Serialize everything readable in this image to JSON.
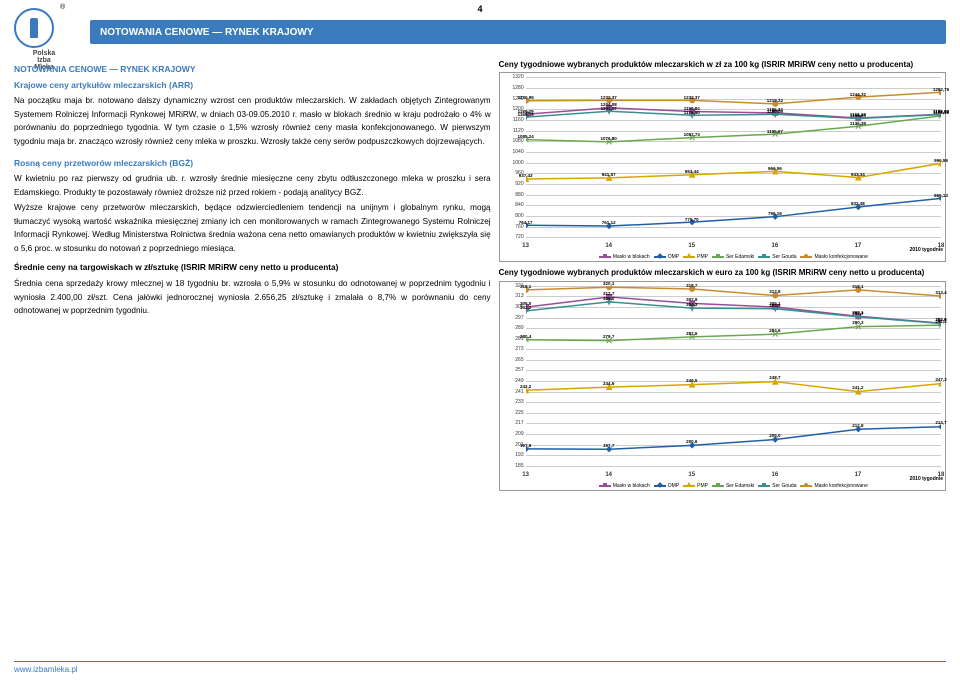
{
  "page_number": "4",
  "logo": {
    "line1": "Polska",
    "line2": "Izba",
    "line3": "Mleka",
    "trademark": "®"
  },
  "header_title": "NOTOWANIA CENOWE — RYNEK KRAJOWY",
  "footer": "www.izbamleka.pl",
  "left": {
    "title1": "NOTOWANIA CENOWE — RYNEK KRAJOWY",
    "title2": "Krajowe ceny artykułów mleczarskich (ARR)",
    "para1": "Na początku maja br. notowano dalszy dynamiczny wzrost cen produktów mleczarskich. W zakładach objętych Zintegrowanym Systemem Rolniczej Informacji Rynkowej MRiRW, w dniach 03-09.05.2010 r. masło w blokach średnio w kraju podrożało o 4% w porównaniu do poprzedniego tygodnia. W tym czasie o 1,5% wzrosły również ceny masła konfekcjonowanego. W pierwszym tygodniu maja br. znacząco wzrosły również ceny mleka w proszku. Wzrosły także ceny serów podpuszczkowych dojrzewających.",
    "title3": "Rosną ceny przetworów mleczarskich (BGŻ)",
    "para2": "W kwietniu po raz pierwszy od grudnia ub. r. wzrosły średnie miesięczne ceny zbytu odtłuszczonego mleka w proszku i sera Edamskiego. Produkty te pozostawały również droższe niż przed rokiem - podają analitycy BGŻ.",
    "para3": "Wyższe krajowe ceny przetworów mleczarskich, będące odzwierciedleniem tendencji na unijnym i globalnym rynku, mogą tłumaczyć wysoką wartość wskaźnika miesięcznej zmiany ich cen monitorowanych w ramach Zintegrowanego Systemu Rolniczej Informacji Rynkowej. Według Ministerstwa Rolnictwa średnia ważona cena netto omawianych produktów w kwietniu zwiększyła się o 5,6 proc. w stosunku do notowań z poprzedniego miesiąca.",
    "title4": "Średnie ceny na targowiskach w zł/sztukę (ISRIR MRiRW ceny netto u producenta)",
    "para4": "Średnia cena sprzedaży krowy mlecznej w 18 tygodniu br. wzrosła o 5,9% w stosunku do odnotowanej w poprzednim tygodniu i wyniosła 2.400,00 zł/szt. Cena jałówki jednorocznej wyniosła 2.656,25 zł/sztukę i zmalała o 8,7% w porównaniu do ceny odnotowanej w poprzednim tygodniu."
  },
  "legend_labels": [
    "Masło w blokach",
    "OMP",
    "PMP",
    "Ser Edamski",
    "Ser Gouda",
    "Masło konfekcjonowane"
  ],
  "legend_colors": [
    "#9a4d9a",
    "#1f5fa8",
    "#d9a500",
    "#6aa84f",
    "#3a8f8f",
    "#c98b2f"
  ],
  "legend_markers": [
    "square",
    "diamond",
    "triangle",
    "x",
    "star",
    "circle"
  ],
  "x_axis_label": "2010  tygodnie",
  "chart1": {
    "title": "Ceny tygodniowe wybranych produktów mleczarskich w zł za 100 kg (ISRIR MRiRW ceny netto u producenta)",
    "x": [
      13,
      14,
      15,
      16,
      17,
      18
    ],
    "ymin": 720,
    "ymax": 1320,
    "ystep": 40,
    "series": [
      {
        "name": "Masło w blokach",
        "color": "#9a4d9a",
        "vals": [
          1180.29,
          1204.08,
          1190.84,
          1185.34,
          1166.19,
          1180.38
        ],
        "labels": [
          "1180,29",
          "1204,08",
          "1190,84",
          "1185,34",
          "1166,19",
          "1180,38"
        ]
      },
      {
        "name": "OMP",
        "color": "#1f5fa8",
        "vals": [
          764.17,
          761.12,
          775.7,
          796.19,
          832.48,
          865.13
        ],
        "labels": [
          "764,17",
          "761,12",
          "775,70",
          "796,19",
          "832,48",
          "865,13"
        ]
      },
      {
        "name": "PMP",
        "color": "#d9a500",
        "vals": [
          937.43,
          941.57,
          953.44,
          966.06,
          943.34,
          996.59
        ],
        "labels": [
          "937,43",
          "941,57",
          "953,44",
          "966,06",
          "943,34",
          "996,59"
        ]
      },
      {
        "name": "Ser Edamski",
        "color": "#6aa84f",
        "vals": [
          1085.24,
          1076.8,
          1092.74,
          1105.67,
          1135.38,
          1174.33
        ],
        "labels": [
          "1085,24",
          "1076,80",
          "1092,74",
          "1105,67",
          "1135,38",
          "1174,33"
        ]
      },
      {
        "name": "Ser Gouda",
        "color": "#3a8f8f",
        "vals": [
          1169.39,
          1191.67,
          1176.5,
          1180.09,
          1164.6,
          1178.93
        ],
        "labels": [
          "1169,39",
          "1191,67",
          "1176,50",
          "1180,09",
          "1164,60",
          "1178,93"
        ]
      },
      {
        "name": "Masło konf.",
        "color": "#c98b2f",
        "vals": [
          1230.95,
          1232.37,
          1232.37,
          1219.22,
          1244.32,
          1262.75
        ],
        "labels": [
          "1230,95",
          "1232,37",
          "1232,37",
          "1219,22",
          "1244,32",
          "1262,75"
        ]
      }
    ]
  },
  "chart2": {
    "title": "Ceny tygodniowe wybranych produktów mleczarskich w euro za 100 kg (ISRIR MRiRW ceny netto u producenta)",
    "x": [
      13,
      14,
      15,
      16,
      17,
      18
    ],
    "ymin": 185,
    "ymax": 321,
    "ystep": 8,
    "series": [
      {
        "name": "Masło w blokach",
        "color": "#9a4d9a",
        "vals": [
          305.0,
          312.7,
          307.9,
          305.1,
          298.1,
          292.9
        ],
        "labels": [
          "305,0",
          "312,7",
          "307,9",
          "305,1",
          "298,1",
          "292,9"
        ]
      },
      {
        "name": "OMP",
        "color": "#1f5fa8",
        "vals": [
          197.9,
          197.7,
          200.6,
          205.0,
          212.8,
          214.7
        ],
        "labels": [
          "197,9",
          "197,7",
          "200,6",
          "205,0",
          "212,8",
          "214,7"
        ]
      },
      {
        "name": "PMP",
        "color": "#d9a500",
        "vals": [
          242.2,
          244.6,
          246.5,
          248.7,
          241.2,
          247.3
        ],
        "labels": [
          "242,2",
          "244,6",
          "246,5",
          "248,7",
          "241,2",
          "247,3"
        ]
      },
      {
        "name": "Ser Edamski",
        "color": "#6aa84f",
        "vals": [
          280.4,
          279.7,
          282.6,
          284.6,
          290.3,
          291.4
        ],
        "labels": [
          "280,4",
          "279,7",
          "282,6",
          "284,6",
          "290,3",
          "291,4"
        ]
      },
      {
        "name": "Ser Gouda",
        "color": "#3a8f8f",
        "vals": [
          302.2,
          309.0,
          304.3,
          303.8,
          297.7,
          292.6
        ],
        "labels": [
          "302,2",
          "309,0",
          "304,3",
          "303,8",
          "297,7",
          "292,6"
        ]
      },
      {
        "name": "Masło konf.",
        "color": "#c98b2f",
        "vals": [
          318.1,
          320.1,
          318.7,
          313.8,
          318.1,
          313.4
        ],
        "labels": [
          "318,1",
          "320,1",
          "318,7",
          "313,8",
          "318,1",
          "313,4"
        ]
      }
    ]
  }
}
